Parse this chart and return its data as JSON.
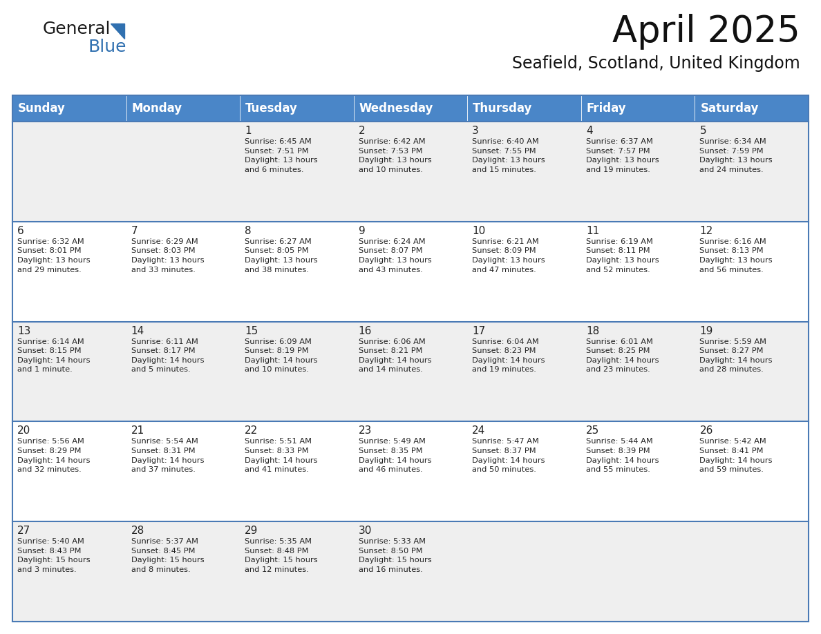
{
  "title": "April 2025",
  "subtitle": "Seafield, Scotland, United Kingdom",
  "header_color": "#4a86c8",
  "header_text_color": "#FFFFFF",
  "row_bg_odd": "#EFEFEF",
  "row_bg_even": "#FFFFFF",
  "border_color": "#4a7ab5",
  "text_color": "#222222",
  "days_of_week": [
    "Sunday",
    "Monday",
    "Tuesday",
    "Wednesday",
    "Thursday",
    "Friday",
    "Saturday"
  ],
  "weeks": [
    [
      {
        "day": "",
        "info": ""
      },
      {
        "day": "",
        "info": ""
      },
      {
        "day": "1",
        "info": "Sunrise: 6:45 AM\nSunset: 7:51 PM\nDaylight: 13 hours\nand 6 minutes."
      },
      {
        "day": "2",
        "info": "Sunrise: 6:42 AM\nSunset: 7:53 PM\nDaylight: 13 hours\nand 10 minutes."
      },
      {
        "day": "3",
        "info": "Sunrise: 6:40 AM\nSunset: 7:55 PM\nDaylight: 13 hours\nand 15 minutes."
      },
      {
        "day": "4",
        "info": "Sunrise: 6:37 AM\nSunset: 7:57 PM\nDaylight: 13 hours\nand 19 minutes."
      },
      {
        "day": "5",
        "info": "Sunrise: 6:34 AM\nSunset: 7:59 PM\nDaylight: 13 hours\nand 24 minutes."
      }
    ],
    [
      {
        "day": "6",
        "info": "Sunrise: 6:32 AM\nSunset: 8:01 PM\nDaylight: 13 hours\nand 29 minutes."
      },
      {
        "day": "7",
        "info": "Sunrise: 6:29 AM\nSunset: 8:03 PM\nDaylight: 13 hours\nand 33 minutes."
      },
      {
        "day": "8",
        "info": "Sunrise: 6:27 AM\nSunset: 8:05 PM\nDaylight: 13 hours\nand 38 minutes."
      },
      {
        "day": "9",
        "info": "Sunrise: 6:24 AM\nSunset: 8:07 PM\nDaylight: 13 hours\nand 43 minutes."
      },
      {
        "day": "10",
        "info": "Sunrise: 6:21 AM\nSunset: 8:09 PM\nDaylight: 13 hours\nand 47 minutes."
      },
      {
        "day": "11",
        "info": "Sunrise: 6:19 AM\nSunset: 8:11 PM\nDaylight: 13 hours\nand 52 minutes."
      },
      {
        "day": "12",
        "info": "Sunrise: 6:16 AM\nSunset: 8:13 PM\nDaylight: 13 hours\nand 56 minutes."
      }
    ],
    [
      {
        "day": "13",
        "info": "Sunrise: 6:14 AM\nSunset: 8:15 PM\nDaylight: 14 hours\nand 1 minute."
      },
      {
        "day": "14",
        "info": "Sunrise: 6:11 AM\nSunset: 8:17 PM\nDaylight: 14 hours\nand 5 minutes."
      },
      {
        "day": "15",
        "info": "Sunrise: 6:09 AM\nSunset: 8:19 PM\nDaylight: 14 hours\nand 10 minutes."
      },
      {
        "day": "16",
        "info": "Sunrise: 6:06 AM\nSunset: 8:21 PM\nDaylight: 14 hours\nand 14 minutes."
      },
      {
        "day": "17",
        "info": "Sunrise: 6:04 AM\nSunset: 8:23 PM\nDaylight: 14 hours\nand 19 minutes."
      },
      {
        "day": "18",
        "info": "Sunrise: 6:01 AM\nSunset: 8:25 PM\nDaylight: 14 hours\nand 23 minutes."
      },
      {
        "day": "19",
        "info": "Sunrise: 5:59 AM\nSunset: 8:27 PM\nDaylight: 14 hours\nand 28 minutes."
      }
    ],
    [
      {
        "day": "20",
        "info": "Sunrise: 5:56 AM\nSunset: 8:29 PM\nDaylight: 14 hours\nand 32 minutes."
      },
      {
        "day": "21",
        "info": "Sunrise: 5:54 AM\nSunset: 8:31 PM\nDaylight: 14 hours\nand 37 minutes."
      },
      {
        "day": "22",
        "info": "Sunrise: 5:51 AM\nSunset: 8:33 PM\nDaylight: 14 hours\nand 41 minutes."
      },
      {
        "day": "23",
        "info": "Sunrise: 5:49 AM\nSunset: 8:35 PM\nDaylight: 14 hours\nand 46 minutes."
      },
      {
        "day": "24",
        "info": "Sunrise: 5:47 AM\nSunset: 8:37 PM\nDaylight: 14 hours\nand 50 minutes."
      },
      {
        "day": "25",
        "info": "Sunrise: 5:44 AM\nSunset: 8:39 PM\nDaylight: 14 hours\nand 55 minutes."
      },
      {
        "day": "26",
        "info": "Sunrise: 5:42 AM\nSunset: 8:41 PM\nDaylight: 14 hours\nand 59 minutes."
      }
    ],
    [
      {
        "day": "27",
        "info": "Sunrise: 5:40 AM\nSunset: 8:43 PM\nDaylight: 15 hours\nand 3 minutes."
      },
      {
        "day": "28",
        "info": "Sunrise: 5:37 AM\nSunset: 8:45 PM\nDaylight: 15 hours\nand 8 minutes."
      },
      {
        "day": "29",
        "info": "Sunrise: 5:35 AM\nSunset: 8:48 PM\nDaylight: 15 hours\nand 12 minutes."
      },
      {
        "day": "30",
        "info": "Sunrise: 5:33 AM\nSunset: 8:50 PM\nDaylight: 15 hours\nand 16 minutes."
      },
      {
        "day": "",
        "info": ""
      },
      {
        "day": "",
        "info": ""
      },
      {
        "day": "",
        "info": ""
      }
    ]
  ],
  "title_fontsize": 38,
  "subtitle_fontsize": 17,
  "header_fontsize": 12,
  "day_number_fontsize": 11,
  "info_fontsize": 8.2
}
